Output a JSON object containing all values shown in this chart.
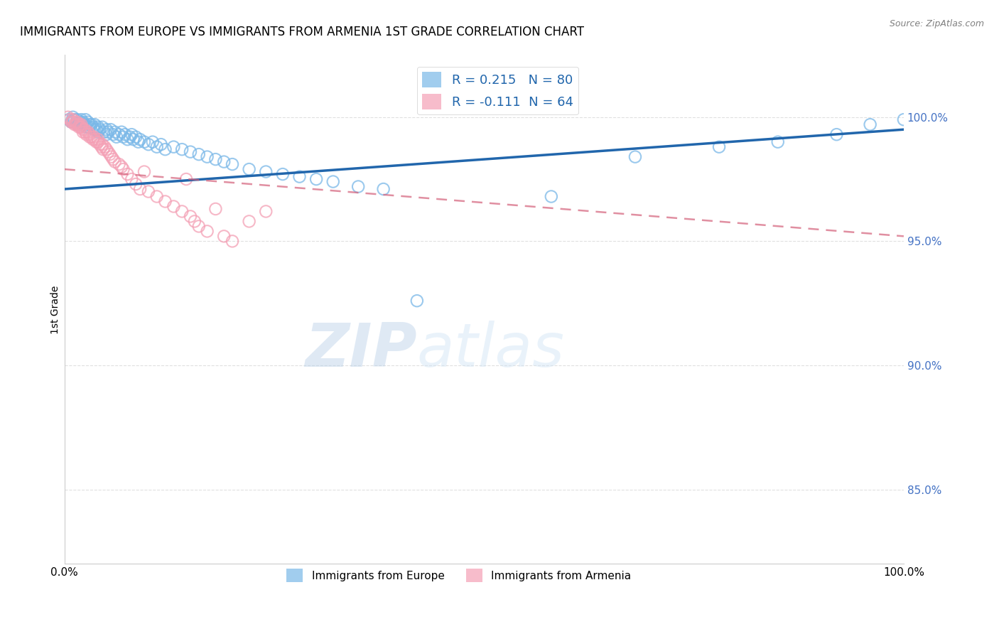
{
  "title": "IMMIGRANTS FROM EUROPE VS IMMIGRANTS FROM ARMENIA 1ST GRADE CORRELATION CHART",
  "source": "Source: ZipAtlas.com",
  "ylabel_left": "1st Grade",
  "x_min": 0.0,
  "x_max": 1.0,
  "y_min": 0.82,
  "y_max": 1.025,
  "right_yticks": [
    0.85,
    0.9,
    0.95,
    1.0
  ],
  "right_yticklabels": [
    "85.0%",
    "90.0%",
    "95.0%",
    "100.0%"
  ],
  "xticks": [
    0.0,
    0.1,
    0.2,
    0.3,
    0.4,
    0.5,
    0.6,
    0.7,
    0.8,
    0.9,
    1.0
  ],
  "xticklabels": [
    "0.0%",
    "",
    "",
    "",
    "",
    "",
    "",
    "",
    "",
    "",
    "100.0%"
  ],
  "blue_color": "#7ab8e8",
  "pink_color": "#f4a0b5",
  "blue_line_color": "#2166ac",
  "pink_line_color": "#d4607a",
  "grid_color": "#e0e0e0",
  "legend_R_blue": "R = 0.215",
  "legend_N_blue": "N = 80",
  "legend_R_pink": "R = -0.111",
  "legend_N_pink": "N = 64",
  "legend_label_blue": "Immigrants from Europe",
  "legend_label_pink": "Immigrants from Armenia",
  "watermark_zip": "ZIP",
  "watermark_atlas": "atlas",
  "blue_trend_x": [
    0.0,
    1.0
  ],
  "blue_trend_y": [
    0.971,
    0.995
  ],
  "pink_trend_x": [
    0.0,
    1.0
  ],
  "pink_trend_y": [
    0.979,
    0.952
  ],
  "blue_scatter_x": [
    0.005,
    0.008,
    0.01,
    0.01,
    0.01,
    0.012,
    0.015,
    0.015,
    0.016,
    0.018,
    0.02,
    0.02,
    0.02,
    0.022,
    0.022,
    0.025,
    0.025,
    0.025,
    0.028,
    0.028,
    0.03,
    0.03,
    0.032,
    0.034,
    0.035,
    0.036,
    0.038,
    0.04,
    0.04,
    0.042,
    0.045,
    0.047,
    0.05,
    0.05,
    0.052,
    0.055,
    0.058,
    0.06,
    0.062,
    0.065,
    0.068,
    0.07,
    0.072,
    0.075,
    0.078,
    0.08,
    0.082,
    0.085,
    0.088,
    0.09,
    0.095,
    0.1,
    0.105,
    0.11,
    0.115,
    0.12,
    0.13,
    0.14,
    0.15,
    0.16,
    0.17,
    0.18,
    0.19,
    0.2,
    0.22,
    0.24,
    0.26,
    0.28,
    0.3,
    0.32,
    0.35,
    0.38,
    0.42,
    0.58,
    0.68,
    0.78,
    0.85,
    0.92,
    0.96,
    1.0
  ],
  "blue_scatter_y": [
    0.999,
    0.998,
    1.0,
    0.999,
    0.998,
    0.999,
    0.999,
    0.998,
    0.997,
    0.998,
    0.999,
    0.998,
    0.997,
    0.998,
    0.997,
    0.999,
    0.997,
    0.996,
    0.998,
    0.996,
    0.997,
    0.996,
    0.997,
    0.996,
    0.995,
    0.997,
    0.995,
    0.996,
    0.994,
    0.995,
    0.996,
    0.994,
    0.995,
    0.993,
    0.994,
    0.995,
    0.993,
    0.994,
    0.992,
    0.993,
    0.994,
    0.992,
    0.993,
    0.991,
    0.992,
    0.993,
    0.991,
    0.992,
    0.99,
    0.991,
    0.99,
    0.989,
    0.99,
    0.988,
    0.989,
    0.987,
    0.988,
    0.987,
    0.986,
    0.985,
    0.984,
    0.983,
    0.982,
    0.981,
    0.979,
    0.978,
    0.977,
    0.976,
    0.975,
    0.974,
    0.972,
    0.971,
    0.926,
    0.968,
    0.984,
    0.988,
    0.99,
    0.993,
    0.997,
    0.999
  ],
  "pink_scatter_x": [
    0.004,
    0.006,
    0.008,
    0.01,
    0.01,
    0.012,
    0.013,
    0.014,
    0.015,
    0.016,
    0.017,
    0.018,
    0.019,
    0.02,
    0.02,
    0.022,
    0.022,
    0.024,
    0.025,
    0.026,
    0.028,
    0.03,
    0.03,
    0.032,
    0.034,
    0.035,
    0.036,
    0.038,
    0.04,
    0.04,
    0.042,
    0.044,
    0.045,
    0.046,
    0.048,
    0.05,
    0.052,
    0.054,
    0.056,
    0.058,
    0.06,
    0.065,
    0.068,
    0.07,
    0.075,
    0.08,
    0.085,
    0.09,
    0.095,
    0.1,
    0.11,
    0.12,
    0.13,
    0.14,
    0.145,
    0.15,
    0.155,
    0.16,
    0.17,
    0.18,
    0.19,
    0.2,
    0.22,
    0.24
  ],
  "pink_scatter_y": [
    1.0,
    0.999,
    0.998,
    0.999,
    0.998,
    0.997,
    0.998,
    0.997,
    0.998,
    0.997,
    0.996,
    0.997,
    0.996,
    0.997,
    0.996,
    0.995,
    0.994,
    0.995,
    0.994,
    0.993,
    0.994,
    0.993,
    0.992,
    0.992,
    0.991,
    0.992,
    0.991,
    0.99,
    0.991,
    0.99,
    0.989,
    0.988,
    0.989,
    0.987,
    0.988,
    0.987,
    0.986,
    0.985,
    0.984,
    0.983,
    0.982,
    0.981,
    0.98,
    0.979,
    0.977,
    0.975,
    0.973,
    0.971,
    0.978,
    0.97,
    0.968,
    0.966,
    0.964,
    0.962,
    0.975,
    0.96,
    0.958,
    0.956,
    0.954,
    0.963,
    0.952,
    0.95,
    0.958,
    0.962
  ]
}
